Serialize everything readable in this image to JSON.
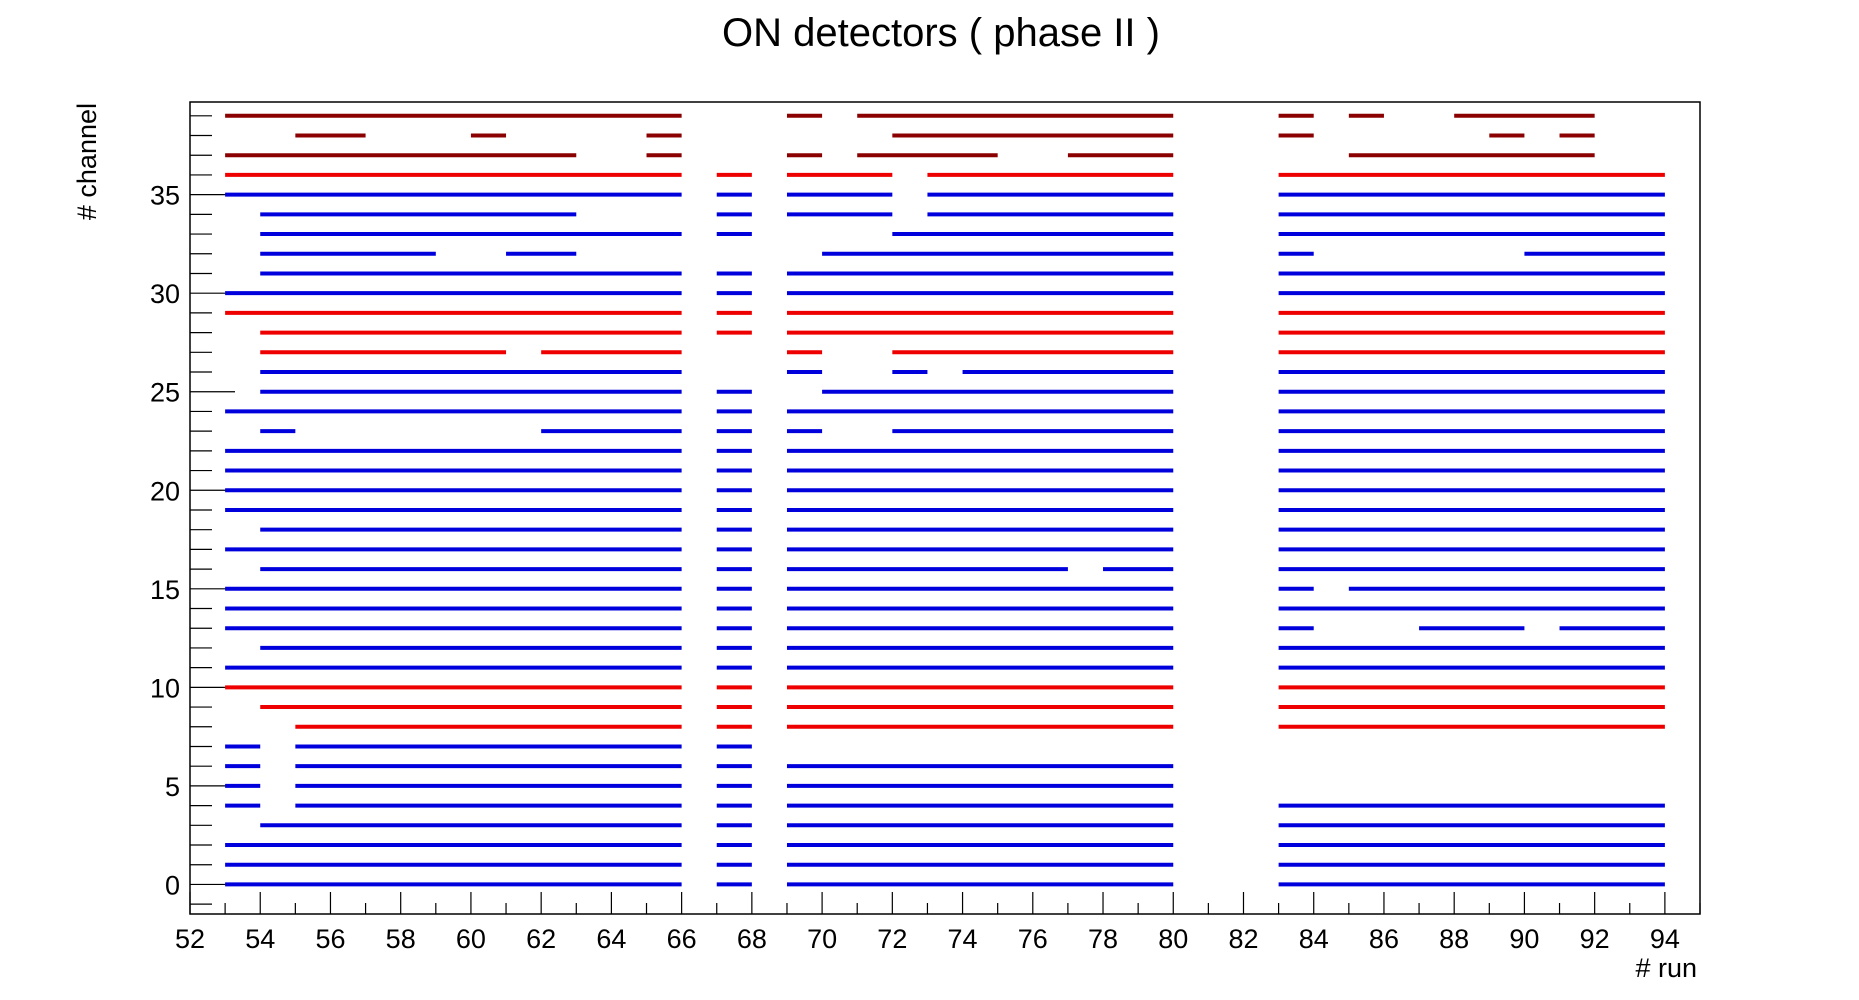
{
  "chart_data": {
    "type": "bar",
    "title": "ON detectors ( phase II )",
    "xlabel": "# run",
    "ylabel": "# channel",
    "xlim": [
      52,
      95
    ],
    "ylim": [
      -1.5,
      39.7
    ],
    "x_ticks": [
      52,
      54,
      56,
      58,
      60,
      62,
      64,
      66,
      68,
      70,
      72,
      74,
      76,
      78,
      80,
      82,
      84,
      86,
      88,
      90,
      92,
      94
    ],
    "y_ticks": [
      0,
      5,
      10,
      15,
      20,
      25,
      30,
      35
    ],
    "grid": false,
    "legend": "none",
    "colors": {
      "blue": "#0000dd",
      "red": "#ee0000",
      "darkred": "#8b0000",
      "axis": "#000000"
    },
    "series": [
      {
        "color": "blue",
        "rows": [
          [
            0,
            [
              [
                53,
                66
              ],
              [
                67,
                68
              ],
              [
                69,
                80
              ],
              [
                83,
                94
              ]
            ]
          ],
          [
            1,
            [
              [
                53,
                66
              ],
              [
                67,
                68
              ],
              [
                69,
                80
              ],
              [
                83,
                94
              ]
            ]
          ],
          [
            2,
            [
              [
                53,
                66
              ],
              [
                67,
                68
              ],
              [
                69,
                80
              ],
              [
                83,
                94
              ]
            ]
          ],
          [
            3,
            [
              [
                54,
                66
              ],
              [
                67,
                68
              ],
              [
                69,
                80
              ],
              [
                83,
                94
              ]
            ]
          ],
          [
            4,
            [
              [
                53,
                54
              ],
              [
                55,
                66
              ],
              [
                67,
                68
              ],
              [
                69,
                80
              ],
              [
                83,
                94
              ]
            ]
          ],
          [
            5,
            [
              [
                53,
                54
              ],
              [
                55,
                66
              ],
              [
                67,
                68
              ],
              [
                69,
                80
              ]
            ]
          ],
          [
            6,
            [
              [
                53,
                54
              ],
              [
                55,
                66
              ],
              [
                67,
                68
              ],
              [
                69,
                80
              ]
            ]
          ],
          [
            7,
            [
              [
                53,
                54
              ],
              [
                55,
                66
              ],
              [
                67,
                68
              ]
            ]
          ],
          [
            11,
            [
              [
                53,
                66
              ],
              [
                67,
                68
              ],
              [
                69,
                80
              ],
              [
                83,
                94
              ]
            ]
          ],
          [
            12,
            [
              [
                54,
                66
              ],
              [
                67,
                68
              ],
              [
                69,
                80
              ],
              [
                83,
                94
              ]
            ]
          ],
          [
            13,
            [
              [
                53,
                66
              ],
              [
                67,
                68
              ],
              [
                69,
                80
              ],
              [
                83,
                84
              ],
              [
                87,
                90
              ],
              [
                91,
                94
              ]
            ]
          ],
          [
            14,
            [
              [
                53,
                66
              ],
              [
                67,
                68
              ],
              [
                69,
                80
              ],
              [
                83,
                94
              ]
            ]
          ],
          [
            15,
            [
              [
                53,
                66
              ],
              [
                67,
                68
              ],
              [
                69,
                80
              ],
              [
                83,
                84
              ],
              [
                85,
                94
              ]
            ]
          ],
          [
            16,
            [
              [
                54,
                66
              ],
              [
                67,
                68
              ],
              [
                69,
                77
              ],
              [
                78,
                80
              ],
              [
                83,
                94
              ]
            ]
          ],
          [
            17,
            [
              [
                53,
                66
              ],
              [
                67,
                68
              ],
              [
                69,
                80
              ],
              [
                83,
                94
              ]
            ]
          ],
          [
            18,
            [
              [
                54,
                66
              ],
              [
                67,
                68
              ],
              [
                69,
                80
              ],
              [
                83,
                94
              ]
            ]
          ],
          [
            19,
            [
              [
                53,
                66
              ],
              [
                67,
                68
              ],
              [
                69,
                80
              ],
              [
                83,
                94
              ]
            ]
          ],
          [
            20,
            [
              [
                53,
                66
              ],
              [
                67,
                68
              ],
              [
                69,
                80
              ],
              [
                83,
                94
              ]
            ]
          ],
          [
            21,
            [
              [
                53,
                66
              ],
              [
                67,
                68
              ],
              [
                69,
                80
              ],
              [
                83,
                94
              ]
            ]
          ],
          [
            22,
            [
              [
                53,
                66
              ],
              [
                67,
                68
              ],
              [
                69,
                80
              ],
              [
                83,
                94
              ]
            ]
          ],
          [
            23,
            [
              [
                54,
                55
              ],
              [
                62,
                66
              ],
              [
                67,
                68
              ],
              [
                69,
                70
              ],
              [
                72,
                80
              ],
              [
                83,
                94
              ]
            ]
          ],
          [
            24,
            [
              [
                53,
                66
              ],
              [
                67,
                68
              ],
              [
                69,
                80
              ],
              [
                83,
                94
              ]
            ]
          ],
          [
            25,
            [
              [
                54,
                66
              ],
              [
                67,
                68
              ],
              [
                70,
                80
              ],
              [
                83,
                94
              ]
            ]
          ],
          [
            26,
            [
              [
                54,
                66
              ],
              [
                69,
                70
              ],
              [
                72,
                73
              ],
              [
                74,
                80
              ],
              [
                83,
                94
              ]
            ]
          ],
          [
            30,
            [
              [
                53,
                66
              ],
              [
                67,
                68
              ],
              [
                69,
                80
              ],
              [
                83,
                94
              ]
            ]
          ],
          [
            31,
            [
              [
                54,
                66
              ],
              [
                67,
                68
              ],
              [
                69,
                80
              ],
              [
                83,
                94
              ]
            ]
          ],
          [
            32,
            [
              [
                54,
                59
              ],
              [
                61,
                63
              ],
              [
                70,
                80
              ],
              [
                83,
                84
              ],
              [
                90,
                94
              ]
            ]
          ],
          [
            33,
            [
              [
                54,
                66
              ],
              [
                67,
                68
              ],
              [
                72,
                80
              ],
              [
                83,
                94
              ]
            ]
          ],
          [
            34,
            [
              [
                54,
                63
              ],
              [
                67,
                68
              ],
              [
                69,
                72
              ],
              [
                73,
                80
              ],
              [
                83,
                94
              ]
            ]
          ],
          [
            35,
            [
              [
                53,
                66
              ],
              [
                67,
                68
              ],
              [
                69,
                72
              ],
              [
                73,
                80
              ],
              [
                83,
                94
              ]
            ]
          ]
        ]
      },
      {
        "color": "red",
        "rows": [
          [
            8,
            [
              [
                55,
                66
              ],
              [
                67,
                68
              ],
              [
                69,
                80
              ],
              [
                83,
                94
              ]
            ]
          ],
          [
            9,
            [
              [
                54,
                66
              ],
              [
                67,
                68
              ],
              [
                69,
                80
              ],
              [
                83,
                94
              ]
            ]
          ],
          [
            10,
            [
              [
                53,
                66
              ],
              [
                67,
                68
              ],
              [
                69,
                80
              ],
              [
                83,
                94
              ]
            ]
          ],
          [
            27,
            [
              [
                54,
                61
              ],
              [
                62,
                66
              ],
              [
                69,
                70
              ],
              [
                72,
                80
              ],
              [
                83,
                94
              ]
            ]
          ],
          [
            28,
            [
              [
                54,
                66
              ],
              [
                67,
                68
              ],
              [
                69,
                80
              ],
              [
                83,
                94
              ]
            ]
          ],
          [
            29,
            [
              [
                53,
                66
              ],
              [
                67,
                68
              ],
              [
                69,
                80
              ],
              [
                83,
                94
              ]
            ]
          ],
          [
            36,
            [
              [
                53,
                66
              ],
              [
                67,
                68
              ],
              [
                69,
                72
              ],
              [
                73,
                80
              ],
              [
                83,
                94
              ]
            ]
          ]
        ]
      },
      {
        "color": "darkred",
        "rows": [
          [
            37,
            [
              [
                53,
                63
              ],
              [
                65,
                66
              ],
              [
                69,
                70
              ],
              [
                71,
                75
              ],
              [
                77,
                80
              ],
              [
                85,
                92
              ]
            ]
          ],
          [
            38,
            [
              [
                55,
                57
              ],
              [
                60,
                61
              ],
              [
                65,
                66
              ],
              [
                72,
                80
              ],
              [
                83,
                84
              ],
              [
                89,
                90
              ],
              [
                91,
                92
              ]
            ]
          ],
          [
            39,
            [
              [
                53,
                66
              ],
              [
                69,
                70
              ],
              [
                71,
                80
              ],
              [
                83,
                84
              ],
              [
                85,
                86
              ],
              [
                88,
                92
              ]
            ]
          ]
        ]
      }
    ]
  }
}
